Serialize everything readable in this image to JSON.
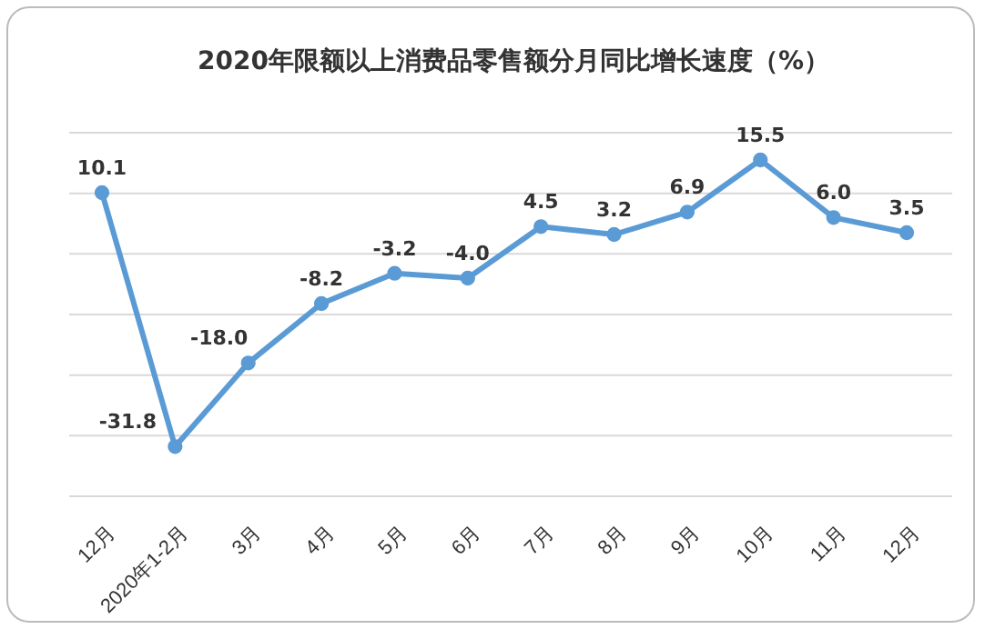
{
  "chart_data": {
    "type": "line",
    "title": "2020年限额以上消费品零售额分月同比增长速度（%）",
    "categories": [
      "12月",
      "2020年1-2月",
      "3月",
      "4月",
      "5月",
      "6月",
      "7月",
      "8月",
      "9月",
      "10月",
      "11月",
      "12月"
    ],
    "series": [
      {
        "color": "#5b9bd5",
        "values": [
          10.1,
          -31.8,
          -18.0,
          -8.2,
          -3.2,
          -4.0,
          4.5,
          3.2,
          6.9,
          15.5,
          6.0,
          3.5
        ],
        "value_labels": [
          "10.1",
          "-31.8",
          "-18.0",
          "-8.2",
          "-3.2",
          "-4.0",
          "4.5",
          "3.2",
          "6.9",
          "15.5",
          "6.0",
          "3.5"
        ]
      }
    ],
    "ylim": [
      -40,
      20
    ],
    "yticks": [
      {
        "value": -40,
        "label": null
      },
      {
        "value": -30,
        "label": null
      },
      {
        "value": -20,
        "label": null
      },
      {
        "value": -10,
        "label": null
      },
      {
        "value": 0,
        "label": null
      },
      {
        "value": 10,
        "label": null
      },
      {
        "value": 20,
        "label": null
      }
    ],
    "grid": "y",
    "tick_labels": "x",
    "marker": "circle",
    "line_style": "solid"
  }
}
